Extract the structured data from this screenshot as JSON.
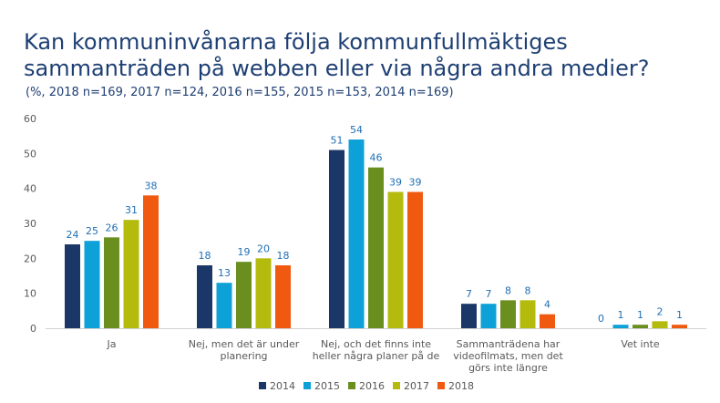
{
  "title_lines": [
    "Kan kommuninvånarna följa kommunfullmäktiges",
    "sammanträden på webben eller via några andra medier?"
  ],
  "subtitle": "(%, 2018 n=169, 2017 n=124, 2016 n=155, 2015 n=153, 2014 n=169)",
  "chart_data": {
    "type": "bar",
    "title": "Kan kommuninvånarna följa kommunfullmäktiges sammanträden på webben eller via några andra medier?",
    "ylim": [
      0,
      60
    ],
    "yticks": [
      0,
      10,
      20,
      30,
      40,
      50,
      60
    ],
    "grid": false,
    "legend_position": "bottom",
    "categories": [
      [
        "Ja"
      ],
      [
        "Nej, men det är under",
        "planering"
      ],
      [
        "Nej, och det finns inte",
        "heller några planer på de"
      ],
      [
        "Sammanträdena har",
        "videofilmats, men det",
        "görs inte längre"
      ],
      [
        "Vet inte"
      ]
    ],
    "series": [
      {
        "name": "2014",
        "color": "#1a3767",
        "values": [
          24,
          18,
          51,
          7,
          0
        ]
      },
      {
        "name": "2015",
        "color": "#0ea1d8",
        "values": [
          25,
          13,
          54,
          7,
          1
        ]
      },
      {
        "name": "2016",
        "color": "#6a8f1f",
        "values": [
          26,
          19,
          46,
          8,
          1
        ]
      },
      {
        "name": "2017",
        "color": "#b4bb0c",
        "values": [
          31,
          20,
          39,
          8,
          2
        ]
      },
      {
        "name": "2018",
        "color": "#f05a10",
        "values": [
          38,
          18,
          39,
          4,
          1
        ]
      }
    ]
  }
}
